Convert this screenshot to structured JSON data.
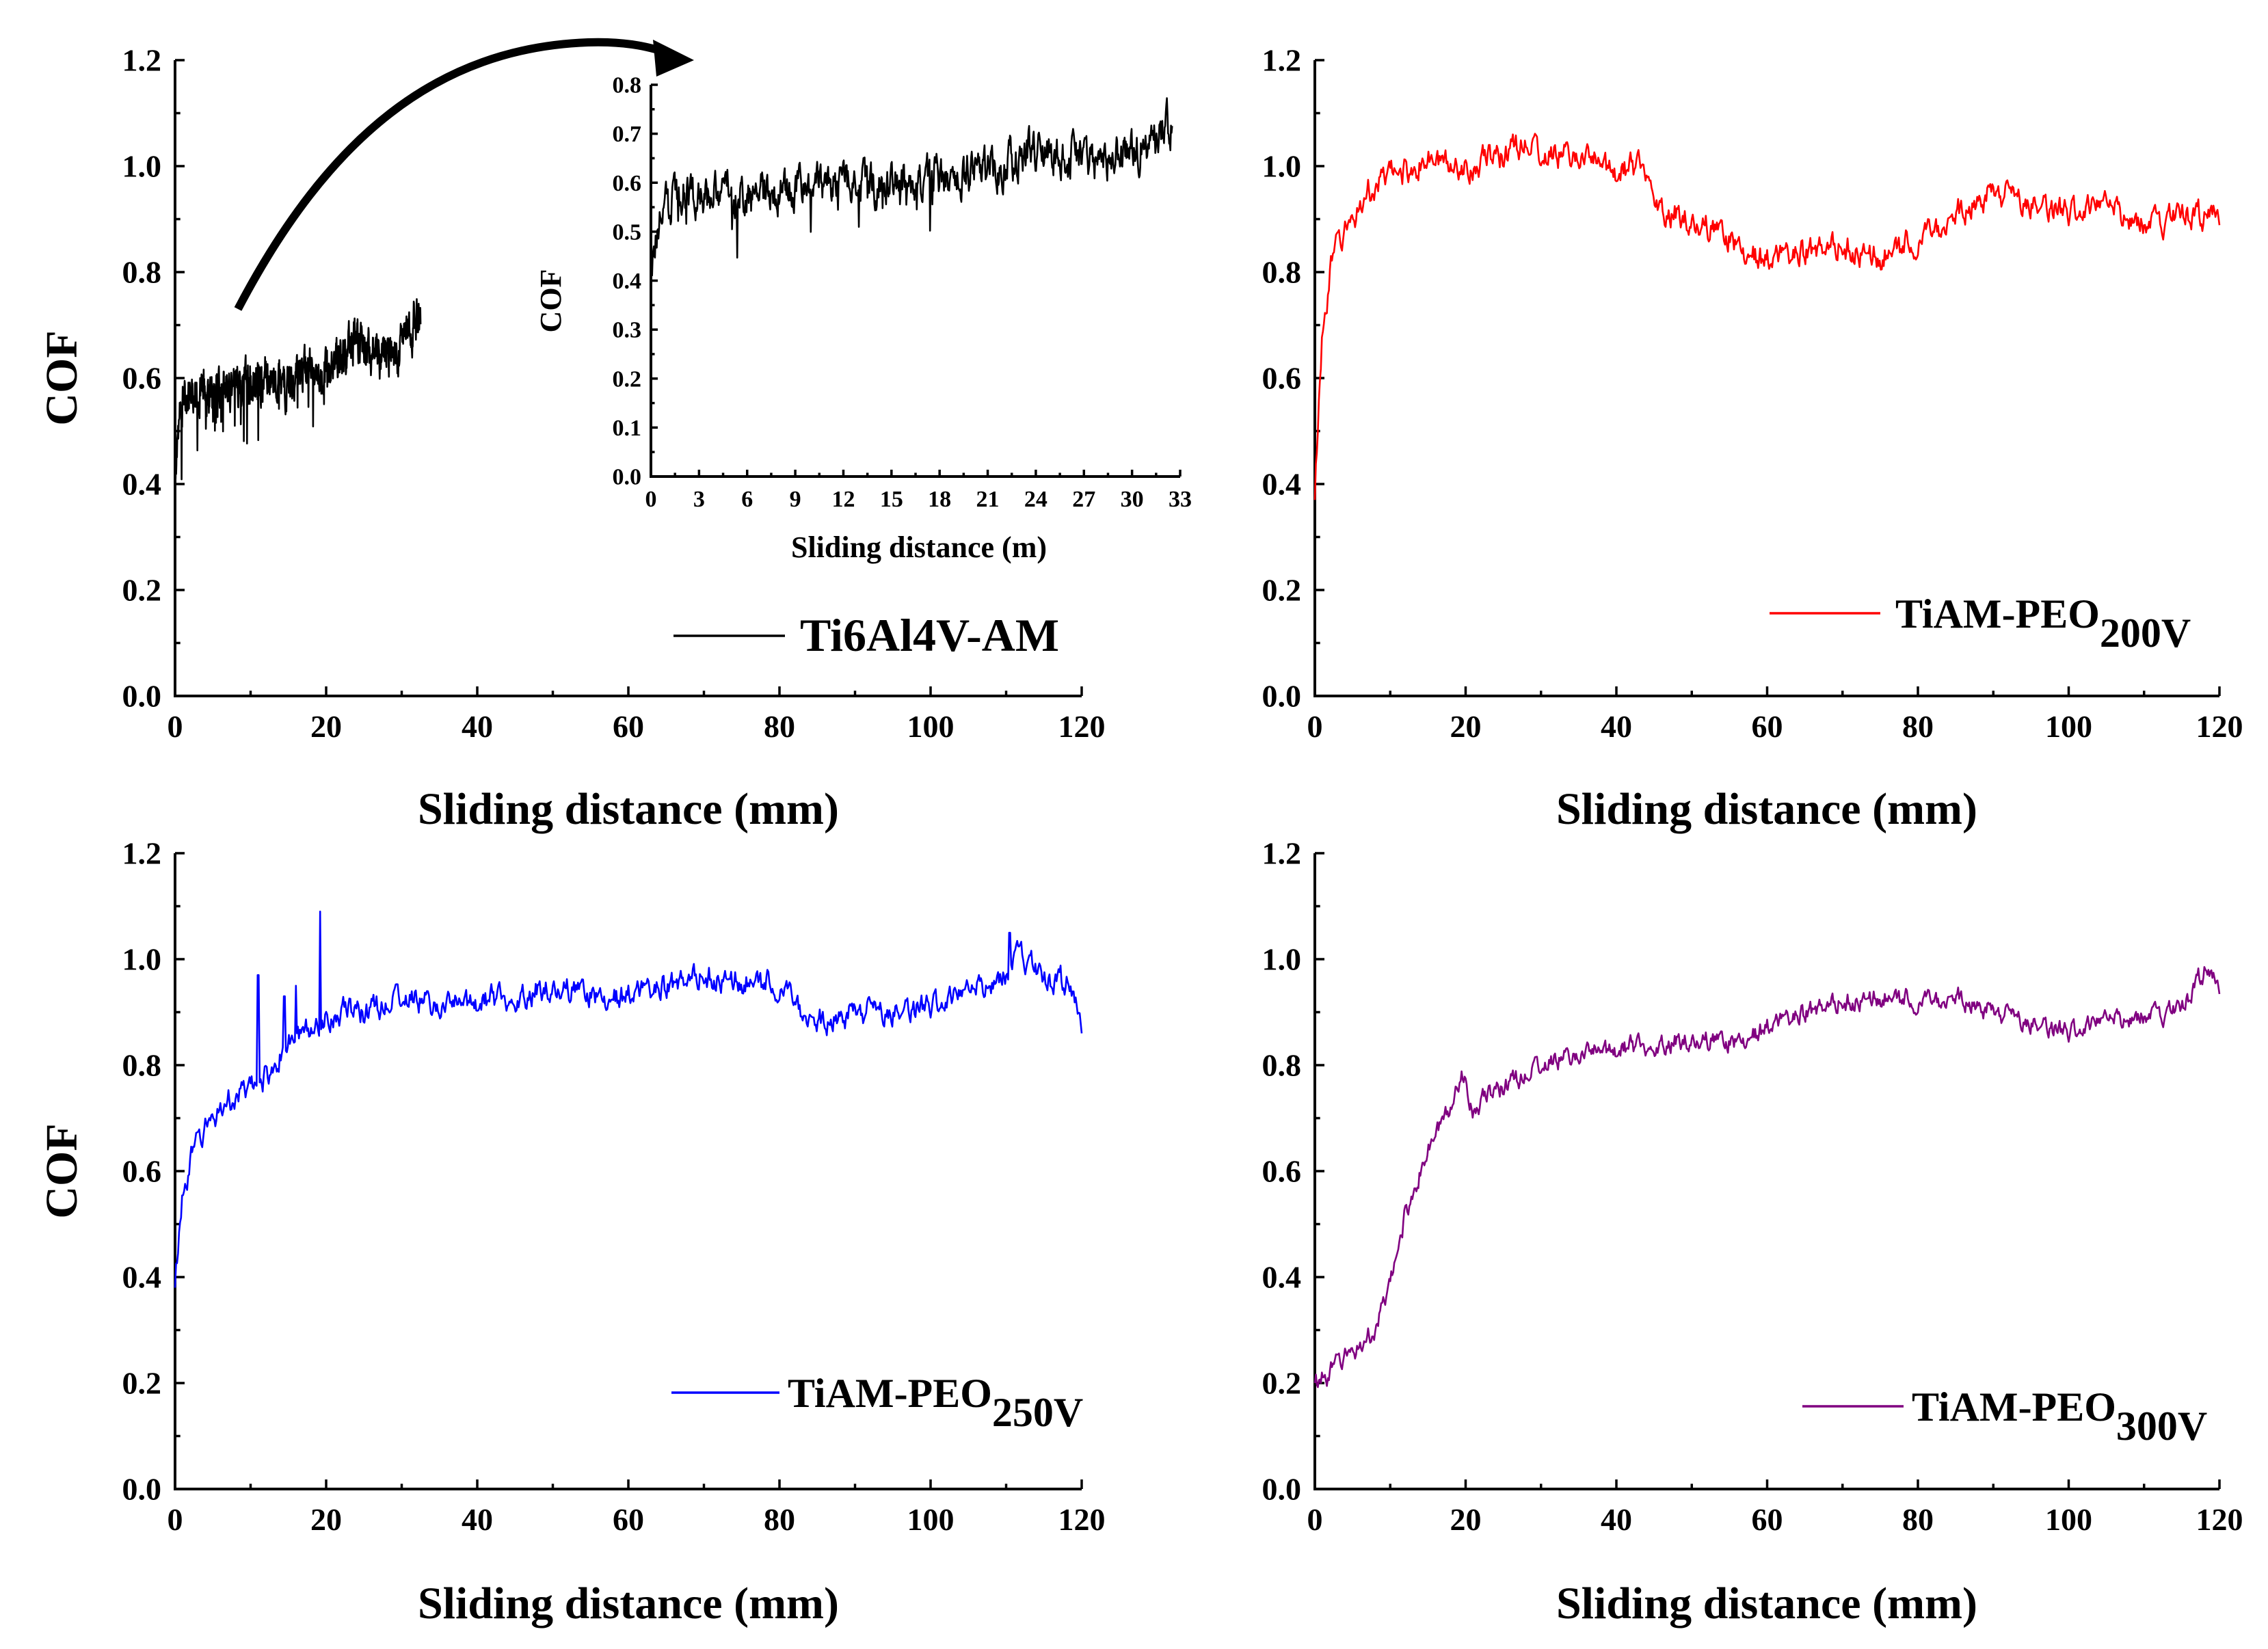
{
  "chart_data": [
    {
      "id": "ti6al4v",
      "type": "line",
      "xlabel": "Sliding distance (mm)",
      "ylabel": "COF",
      "xlim": [
        0,
        120
      ],
      "ylim": [
        0,
        1.2
      ],
      "xticks": [
        "0",
        "20",
        "40",
        "60",
        "80",
        "100",
        "120"
      ],
      "yticks": [
        "0.0",
        "0.2",
        "0.4",
        "0.6",
        "0.8",
        "1.0",
        "1.2"
      ],
      "legend": "Ti6Al4V-AM",
      "legend_sub": "",
      "color": "#000000",
      "x_end": 32.5,
      "series": [
        {
          "name": "Ti6Al4V-AM",
          "x": [
            0,
            0.5,
            1,
            2,
            3,
            4,
            5,
            6,
            8,
            10,
            12,
            14,
            16,
            18,
            20,
            22,
            24,
            26,
            28,
            30,
            32.5
          ],
          "y": [
            0.4,
            0.52,
            0.55,
            0.58,
            0.58,
            0.57,
            0.57,
            0.58,
            0.58,
            0.6,
            0.6,
            0.59,
            0.6,
            0.61,
            0.62,
            0.64,
            0.67,
            0.65,
            0.64,
            0.66,
            0.72
          ]
        }
      ],
      "noise": 0.045
    },
    {
      "id": "ti6al4v-inset",
      "type": "line",
      "xlabel": "Sliding distance (m)",
      "ylabel": "COF",
      "xlim": [
        0,
        33
      ],
      "ylim": [
        0,
        0.8
      ],
      "xticks": [
        "0",
        "3",
        "6",
        "9",
        "12",
        "15",
        "18",
        "21",
        "24",
        "27",
        "30",
        "33"
      ],
      "yticks": [
        "0.0",
        "0.1",
        "0.2",
        "0.3",
        "0.4",
        "0.5",
        "0.6",
        "0.7",
        "0.8"
      ],
      "color": "#000000",
      "x_end": 32.5,
      "series": [
        {
          "name": "Ti6Al4V-AM",
          "x": [
            0,
            0.5,
            1,
            2,
            3,
            4,
            5,
            6,
            8,
            10,
            12,
            14,
            16,
            18,
            20,
            22,
            24,
            26,
            28,
            30,
            32.5
          ],
          "y": [
            0.4,
            0.52,
            0.55,
            0.58,
            0.58,
            0.57,
            0.57,
            0.58,
            0.58,
            0.6,
            0.6,
            0.59,
            0.6,
            0.61,
            0.62,
            0.64,
            0.67,
            0.65,
            0.64,
            0.66,
            0.72
          ]
        }
      ],
      "noise": 0.045
    },
    {
      "id": "peo200",
      "type": "line",
      "xlabel": "Sliding distance (mm)",
      "ylabel": "",
      "xlim": [
        0,
        120
      ],
      "ylim": [
        0,
        1.2
      ],
      "xticks": [
        "0",
        "20",
        "40",
        "60",
        "80",
        "100",
        "120"
      ],
      "yticks": [
        "0.0",
        "0.2",
        "0.4",
        "0.6",
        "0.8",
        "1.0",
        "1.2"
      ],
      "legend": "TiAM-PEO",
      "legend_sub": "200V",
      "color": "#ff0000",
      "x_end": 120,
      "series": [
        {
          "name": "TiAM-PEO200V",
          "x": [
            0,
            0.5,
            1,
            2,
            3,
            5,
            7,
            10,
            15,
            20,
            25,
            28,
            30,
            35,
            40,
            44,
            46,
            50,
            55,
            60,
            65,
            70,
            75,
            80,
            85,
            90,
            95,
            100,
            105,
            110,
            115,
            120
          ],
          "y": [
            0.37,
            0.55,
            0.68,
            0.8,
            0.85,
            0.9,
            0.95,
            0.98,
            1.01,
            1.0,
            1.02,
            1.05,
            1.02,
            1.02,
            0.99,
            1.0,
            0.92,
            0.9,
            0.86,
            0.82,
            0.84,
            0.85,
            0.83,
            0.86,
            0.91,
            0.95,
            0.93,
            0.91,
            0.92,
            0.9,
            0.9,
            0.91
          ]
        }
      ],
      "noise": 0.03
    },
    {
      "id": "peo250",
      "type": "line",
      "xlabel": "Sliding distance (mm)",
      "ylabel": "COF",
      "xlim": [
        0,
        120
      ],
      "ylim": [
        0,
        1.2
      ],
      "xticks": [
        "0",
        "20",
        "40",
        "60",
        "80",
        "100",
        "120"
      ],
      "yticks": [
        "0.0",
        "0.2",
        "0.4",
        "0.6",
        "0.8",
        "1.0",
        "1.2"
      ],
      "legend": "TiAM-PEO",
      "legend_sub": "250V",
      "color": "#0000ff",
      "x_end": 120,
      "series": [
        {
          "name": "TiAM-PEO250V",
          "x": [
            0,
            0.5,
            1,
            2,
            4,
            6,
            8,
            10,
            11,
            13,
            15,
            17,
            19,
            21,
            25,
            30,
            35,
            40,
            45,
            50,
            55,
            60,
            65,
            70,
            75,
            80,
            85,
            90,
            95,
            100,
            105,
            110,
            112,
            115,
            118,
            120
          ],
          "y": [
            0.38,
            0.48,
            0.55,
            0.62,
            0.68,
            0.72,
            0.74,
            0.75,
            0.76,
            0.8,
            0.84,
            0.86,
            0.88,
            0.9,
            0.9,
            0.93,
            0.91,
            0.92,
            0.93,
            0.95,
            0.93,
            0.93,
            0.95,
            0.97,
            0.96,
            0.95,
            0.88,
            0.9,
            0.9,
            0.91,
            0.93,
            0.98,
            1.02,
            0.95,
            0.96,
            0.88
          ]
        }
      ],
      "noise": 0.028,
      "spikes": [
        [
          11,
          0.97
        ],
        [
          14.5,
          0.93
        ],
        [
          16,
          0.95
        ],
        [
          19.2,
          1.09
        ],
        [
          110.5,
          1.05
        ]
      ]
    },
    {
      "id": "peo300",
      "type": "line",
      "xlabel": "Sliding distance (mm)",
      "ylabel": "",
      "xlim": [
        0,
        120
      ],
      "ylim": [
        0,
        1.2
      ],
      "xticks": [
        "0",
        "20",
        "40",
        "60",
        "80",
        "100",
        "120"
      ],
      "yticks": [
        "0.0",
        "0.2",
        "0.4",
        "0.6",
        "0.8",
        "1.0",
        "1.2"
      ],
      "legend": "TiAM-PEO",
      "legend_sub": "300V",
      "color": "#800080",
      "x_end": 120,
      "series": [
        {
          "name": "TiAM-PEO300V",
          "x": [
            0,
            2,
            4,
            6,
            8,
            10,
            12,
            14,
            16,
            18,
            19.5,
            21,
            25,
            30,
            35,
            40,
            45,
            50,
            55,
            60,
            65,
            70,
            75,
            80,
            85,
            90,
            95,
            100,
            105,
            110,
            115,
            118,
            120
          ],
          "y": [
            0.2,
            0.22,
            0.25,
            0.27,
            0.3,
            0.38,
            0.52,
            0.6,
            0.67,
            0.72,
            0.79,
            0.72,
            0.76,
            0.8,
            0.82,
            0.83,
            0.84,
            0.85,
            0.84,
            0.87,
            0.9,
            0.92,
            0.93,
            0.92,
            0.93,
            0.9,
            0.88,
            0.86,
            0.88,
            0.9,
            0.9,
            0.98,
            0.95
          ]
        }
      ],
      "noise": 0.022
    }
  ]
}
